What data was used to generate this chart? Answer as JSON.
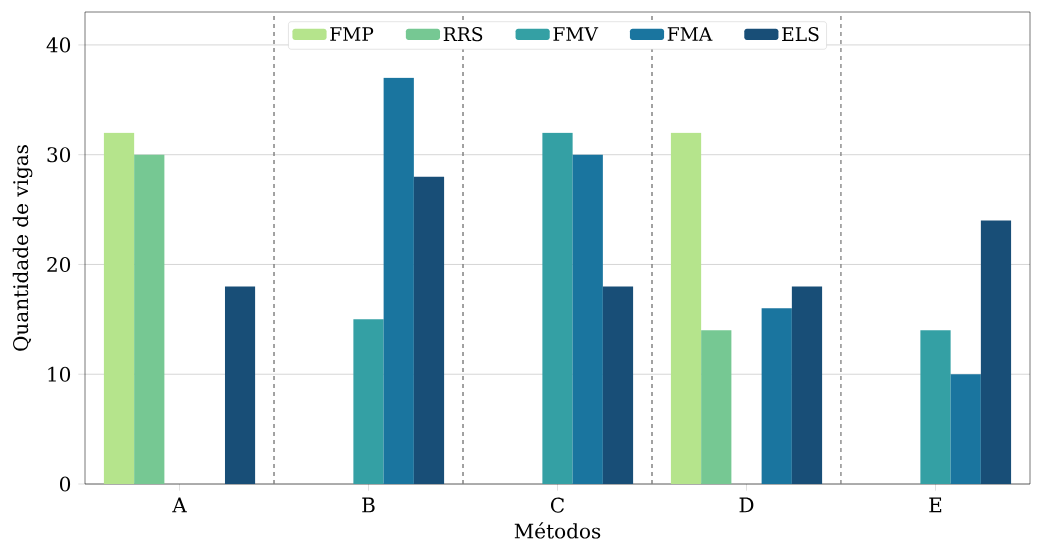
{
  "chart_data": {
    "type": "bar",
    "xlabel": "Métodos",
    "ylabel": "Quantidade de vigas",
    "categories": [
      "A",
      "B",
      "C",
      "D",
      "E"
    ],
    "series": [
      {
        "name": "FMP",
        "color": "#b5e48c",
        "values": [
          32,
          0,
          0,
          32,
          0
        ]
      },
      {
        "name": "RRS",
        "color": "#76c893",
        "values": [
          30,
          0,
          0,
          14,
          0
        ]
      },
      {
        "name": "FMV",
        "color": "#34a0a4",
        "values": [
          0,
          15,
          32,
          0,
          14
        ]
      },
      {
        "name": "FMA",
        "color": "#1a759f",
        "values": [
          0,
          37,
          30,
          16,
          10
        ]
      },
      {
        "name": "ELS",
        "color": "#184e77",
        "values": [
          18,
          28,
          18,
          18,
          24
        ]
      }
    ],
    "ylim": [
      0,
      43
    ],
    "yticks": [
      0,
      10,
      20,
      30,
      40
    ],
    "grid": "y",
    "legend": "top"
  }
}
